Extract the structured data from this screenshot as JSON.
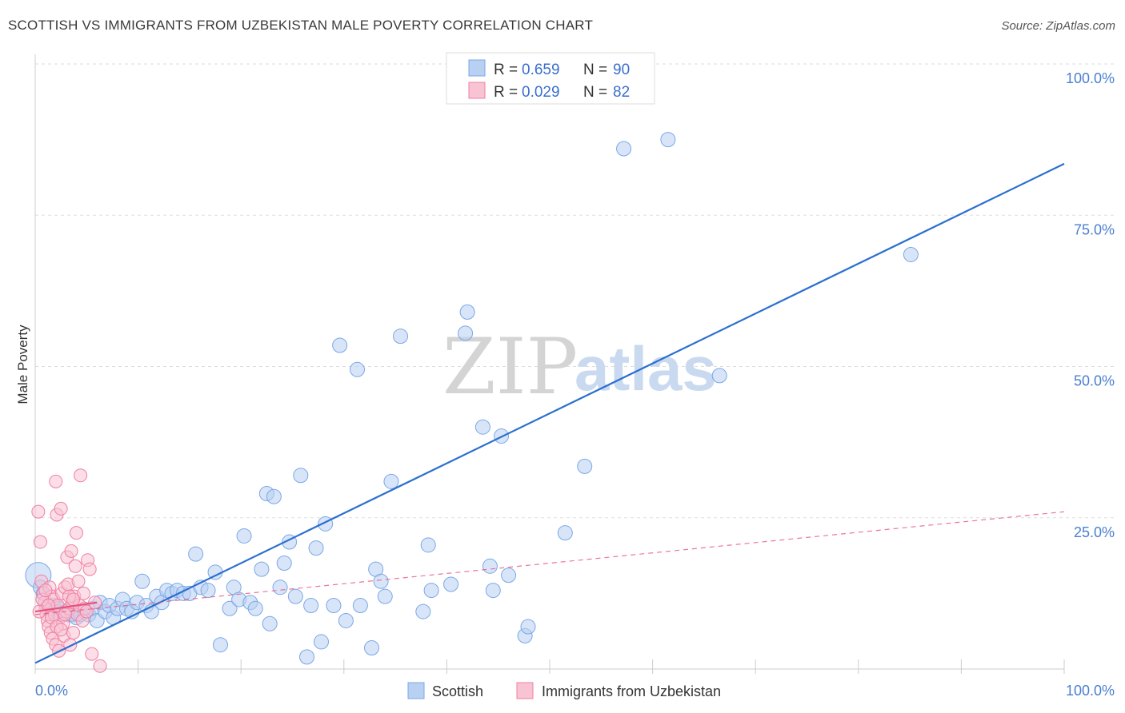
{
  "title": "SCOTTISH VS IMMIGRANTS FROM UZBEKISTAN MALE POVERTY CORRELATION CHART",
  "source": "Source: ZipAtlas.com",
  "colors": {
    "scottish": "#7aa8e6",
    "scottish_fill": "#b8d0f2",
    "scottish_line": "#2a6fd0",
    "uzbek": "#f07fa2",
    "uzbek_fill": "#f8c3d3",
    "uzbek_line": "#e8527f",
    "grid": "#dddddd",
    "tick_text": "#4a7fd0"
  },
  "legend": {
    "rows": [
      {
        "r_label": "R =",
        "r_value": "0.659",
        "n_label": "N =",
        "n_value": "90"
      },
      {
        "r_label": "R =",
        "r_value": "0.029",
        "n_label": "N =",
        "n_value": "82"
      }
    ]
  },
  "bottom_legend": [
    "Scottish",
    "Immigrants from Uzbekistan"
  ],
  "watermark": {
    "zip": "ZIP",
    "atlas": "atlas"
  },
  "chart_data": {
    "type": "scatter",
    "xlabel": "",
    "ylabel": "Male Poverty",
    "xlim": [
      0,
      100
    ],
    "ylim": [
      0,
      100
    ],
    "x_tick_labels": [
      "0.0%",
      "100.0%"
    ],
    "y_tick_labels": [
      "100.0%",
      "75.0%",
      "50.0%",
      "25.0%"
    ],
    "y_tick_values": [
      100,
      75,
      50,
      25
    ],
    "series": [
      {
        "name": "Scottish",
        "regression": {
          "x0": 0,
          "y0": 1.0,
          "x1": 100,
          "y1": 83.5,
          "style": "solid"
        },
        "points": [
          [
            0.3,
            15.5
          ],
          [
            0.5,
            13.5
          ],
          [
            0.8,
            12.5
          ],
          [
            1.0,
            11.0
          ],
          [
            1.2,
            10.0
          ],
          [
            1.5,
            9.5
          ],
          [
            1.8,
            10.5
          ],
          [
            2.0,
            9.5
          ],
          [
            2.3,
            10.0
          ],
          [
            2.6,
            9.0
          ],
          [
            3.0,
            9.5
          ],
          [
            3.3,
            9.0
          ],
          [
            3.6,
            9.0
          ],
          [
            4.0,
            8.5
          ],
          [
            4.4,
            9.0
          ],
          [
            4.8,
            9.5
          ],
          [
            5.2,
            9.0
          ],
          [
            5.6,
            10.0
          ],
          [
            6.0,
            8.0
          ],
          [
            6.3,
            11.0
          ],
          [
            6.8,
            9.5
          ],
          [
            7.2,
            10.5
          ],
          [
            7.6,
            8.5
          ],
          [
            8.0,
            10.0
          ],
          [
            8.5,
            11.5
          ],
          [
            8.9,
            10.0
          ],
          [
            9.4,
            9.5
          ],
          [
            9.9,
            11.0
          ],
          [
            10.4,
            14.5
          ],
          [
            10.8,
            10.5
          ],
          [
            11.3,
            9.5
          ],
          [
            11.8,
            12.0
          ],
          [
            12.3,
            11.0
          ],
          [
            12.8,
            13.0
          ],
          [
            13.3,
            12.5
          ],
          [
            13.8,
            13.0
          ],
          [
            14.4,
            12.5
          ],
          [
            15.0,
            12.5
          ],
          [
            15.6,
            19.0
          ],
          [
            16.1,
            13.5
          ],
          [
            16.8,
            13.0
          ],
          [
            17.5,
            16.0
          ],
          [
            18.0,
            4.0
          ],
          [
            18.9,
            10.0
          ],
          [
            19.3,
            13.5
          ],
          [
            19.8,
            11.5
          ],
          [
            20.3,
            22.0
          ],
          [
            20.9,
            11.0
          ],
          [
            21.4,
            10.0
          ],
          [
            22.0,
            16.5
          ],
          [
            22.5,
            29.0
          ],
          [
            22.8,
            7.5
          ],
          [
            23.2,
            28.5
          ],
          [
            23.8,
            13.5
          ],
          [
            24.2,
            17.5
          ],
          [
            24.7,
            21.0
          ],
          [
            25.3,
            12.0
          ],
          [
            25.8,
            32.0
          ],
          [
            26.4,
            2.0
          ],
          [
            26.8,
            10.5
          ],
          [
            27.3,
            20.0
          ],
          [
            27.8,
            4.5
          ],
          [
            28.2,
            24.0
          ],
          [
            29.0,
            10.5
          ],
          [
            29.6,
            53.5
          ],
          [
            30.2,
            8.0
          ],
          [
            31.3,
            49.5
          ],
          [
            31.6,
            10.5
          ],
          [
            32.7,
            3.5
          ],
          [
            33.1,
            16.5
          ],
          [
            33.6,
            14.5
          ],
          [
            34.0,
            12.0
          ],
          [
            34.6,
            31.0
          ],
          [
            35.5,
            55.0
          ],
          [
            37.7,
            9.5
          ],
          [
            38.2,
            20.5
          ],
          [
            38.5,
            13.0
          ],
          [
            40.4,
            14.0
          ],
          [
            41.8,
            55.5
          ],
          [
            42.0,
            59.0
          ],
          [
            43.5,
            40.0
          ],
          [
            44.2,
            17.0
          ],
          [
            44.5,
            13.0
          ],
          [
            45.3,
            38.5
          ],
          [
            46.0,
            15.5
          ],
          [
            47.6,
            5.5
          ],
          [
            47.9,
            7.0
          ],
          [
            51.5,
            22.5
          ],
          [
            53.4,
            33.5
          ],
          [
            57.2,
            86.0
          ],
          [
            61.5,
            87.5
          ],
          [
            66.5,
            48.5
          ],
          [
            85.1,
            68.5
          ]
        ]
      },
      {
        "name": "Immigrants from Uzbekistan",
        "regression": {
          "x0": 0,
          "y0": 9.0,
          "x1": 100,
          "y1": 26.0,
          "style": "dashed"
        },
        "regression_solid": {
          "x0": 0,
          "y0": 9.5,
          "x1": 6.0,
          "y1": 11.0
        },
        "points": [
          [
            0.3,
            26.0
          ],
          [
            0.5,
            21.0
          ],
          [
            0.6,
            14.5
          ],
          [
            0.8,
            12.5
          ],
          [
            0.9,
            11.0
          ],
          [
            1.0,
            10.0
          ],
          [
            1.1,
            9.0
          ],
          [
            1.2,
            8.0
          ],
          [
            1.3,
            7.0
          ],
          [
            1.4,
            13.5
          ],
          [
            1.5,
            6.0
          ],
          [
            1.6,
            12.0
          ],
          [
            1.7,
            5.0
          ],
          [
            1.8,
            11.5
          ],
          [
            1.9,
            9.0
          ],
          [
            2.0,
            4.0
          ],
          [
            2.0,
            31.0
          ],
          [
            2.1,
            25.5
          ],
          [
            2.2,
            10.5
          ],
          [
            2.3,
            3.0
          ],
          [
            2.4,
            8.5
          ],
          [
            2.5,
            26.5
          ],
          [
            2.6,
            12.5
          ],
          [
            2.7,
            7.5
          ],
          [
            2.8,
            5.5
          ],
          [
            2.9,
            13.5
          ],
          [
            3.0,
            9.5
          ],
          [
            3.1,
            18.5
          ],
          [
            3.2,
            14.0
          ],
          [
            3.3,
            10.0
          ],
          [
            3.4,
            4.0
          ],
          [
            3.5,
            19.5
          ],
          [
            3.6,
            11.0
          ],
          [
            3.7,
            6.0
          ],
          [
            3.8,
            12.0
          ],
          [
            3.9,
            17.0
          ],
          [
            4.0,
            22.5
          ],
          [
            4.1,
            9.0
          ],
          [
            4.2,
            14.5
          ],
          [
            4.3,
            10.5
          ],
          [
            4.4,
            32.0
          ],
          [
            4.6,
            8.0
          ],
          [
            4.7,
            12.5
          ],
          [
            4.8,
            10.0
          ],
          [
            5.0,
            9.5
          ],
          [
            5.1,
            18.0
          ],
          [
            5.3,
            16.5
          ],
          [
            5.5,
            2.5
          ],
          [
            5.8,
            11.0
          ],
          [
            6.3,
            0.5
          ],
          [
            0.4,
            9.5
          ],
          [
            0.7,
            11.5
          ],
          [
            1.0,
            13.0
          ],
          [
            1.3,
            10.5
          ],
          [
            1.6,
            8.5
          ],
          [
            2.1,
            7.0
          ],
          [
            2.5,
            6.5
          ],
          [
            2.9,
            9.0
          ],
          [
            3.3,
            12.0
          ],
          [
            3.7,
            11.5
          ]
        ]
      }
    ]
  }
}
